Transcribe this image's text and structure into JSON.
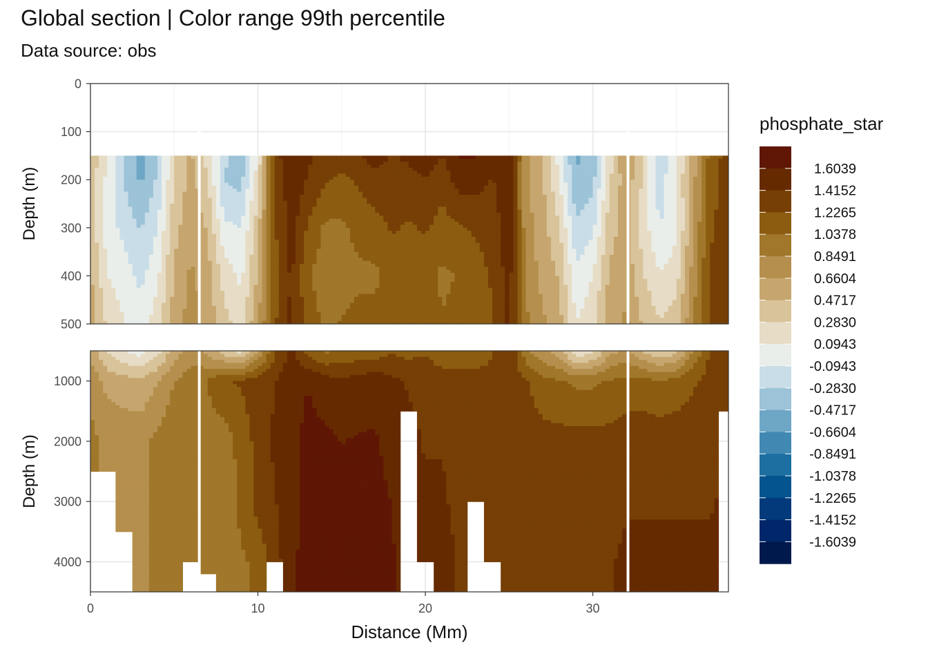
{
  "title": "Global section | Color range 99th percentile",
  "subtitle": "Data source:  obs",
  "colors": {
    "panel_border": "#333333",
    "grid_major": "#ebebeb",
    "grid_minor": "#f3f3f3",
    "missing": "#ffffff",
    "palette": [
      "#00194c",
      "#01266a",
      "#023a7b",
      "#04548f",
      "#1d6fa1",
      "#4189b3",
      "#6ea6c6",
      "#9cc3d7",
      "#c8dde8",
      "#eaeeea",
      "#e7dcc5",
      "#d8c39a",
      "#c6a66e",
      "#b58f4d",
      "#a0772b",
      "#8c5c10",
      "#763f05",
      "#662a01",
      "#5f1604"
    ]
  },
  "chart_data": {
    "type": "heatmap",
    "variable": "phosphate_star",
    "xlabel": "Distance (Mm)",
    "ylabel": "Depth (m)",
    "x_range": [
      0,
      38.1
    ],
    "x_ticks": [
      0,
      10,
      20,
      30
    ],
    "grid": true,
    "legend_position": "right",
    "legend_title": "phosphate_star",
    "legend_breaks": [
      "1.6039",
      "1.4152",
      "1.2265",
      "1.0378",
      "0.8491",
      "0.6604",
      "0.4717",
      "0.2830",
      "0.0943",
      "-0.0943",
      "-0.2830",
      "-0.4717",
      "-0.6604",
      "-0.8491",
      "-1.0378",
      "-1.2265",
      "-1.4152",
      "-1.6039"
    ],
    "panels": [
      {
        "name": "upper",
        "depth_range": [
          0,
          500
        ],
        "depth_ticks": [
          0,
          100,
          200,
          300,
          400,
          500
        ],
        "data_top_depth": 150
      },
      {
        "name": "lower",
        "depth_range": [
          500,
          4500
        ],
        "depth_ticks": [
          1000,
          2000,
          3000,
          4000
        ]
      }
    ],
    "profile_x": [
      0,
      1,
      2,
      3,
      4,
      5,
      6,
      7,
      8,
      9,
      10,
      11,
      12,
      13,
      14,
      15,
      16,
      17,
      18,
      19,
      20,
      21,
      22,
      23,
      24,
      25,
      26,
      27,
      28,
      29,
      30,
      31,
      32,
      33,
      34,
      35,
      36,
      37,
      38
    ],
    "profiles": {
      "depth": [
        150,
        200,
        300,
        400,
        500,
        1000,
        2000,
        3000,
        4000,
        4500
      ],
      "values": [
        [
          0.45,
          0.35,
          0.4,
          0.5,
          0.6,
          0.8,
          0.9,
          0.9,
          0.9,
          0.9
        ],
        [
          0.15,
          0.05,
          0.0,
          0.1,
          0.25,
          0.6,
          0.8,
          0.8,
          0.8,
          0.8
        ],
        [
          -0.25,
          -0.3,
          -0.15,
          0.0,
          0.1,
          0.55,
          0.8,
          0.8,
          0.8,
          0.8
        ],
        [
          -0.55,
          -0.5,
          -0.3,
          -0.15,
          0.0,
          0.5,
          0.8,
          0.8,
          0.8,
          0.8
        ],
        [
          -0.3,
          -0.25,
          -0.1,
          0.05,
          0.2,
          0.65,
          0.9,
          0.9,
          0.9,
          0.9
        ],
        [
          0.25,
          0.3,
          0.4,
          0.5,
          0.55,
          0.85,
          1.0,
          1.0,
          1.0,
          1.0
        ],
        [
          0.5,
          0.55,
          0.6,
          0.7,
          0.75,
          0.95,
          1.0,
          0.95,
          0.95,
          0.95
        ],
        [
          0.2,
          0.3,
          0.45,
          0.55,
          0.6,
          1.05,
          0.95,
          0.95,
          0.95,
          0.95
        ],
        [
          -0.25,
          -0.3,
          -0.05,
          0.2,
          0.35,
          1.2,
          0.95,
          0.9,
          0.95,
          0.95
        ],
        [
          -0.35,
          -0.35,
          -0.1,
          0.05,
          0.2,
          1.25,
          1.1,
          1.1,
          1.0,
          1.0
        ],
        [
          0.1,
          0.2,
          0.4,
          0.5,
          0.65,
          1.35,
          1.3,
          1.3,
          1.1,
          1.1
        ],
        [
          1.3,
          1.25,
          1.2,
          1.15,
          1.2,
          1.4,
          1.45,
          1.4,
          1.3,
          1.3
        ],
        [
          1.62,
          1.55,
          1.5,
          1.45,
          1.45,
          1.55,
          1.55,
          1.55,
          1.6,
          1.6
        ],
        [
          1.45,
          1.4,
          1.2,
          1.05,
          1.15,
          1.6,
          1.65,
          1.65,
          1.62,
          1.62
        ],
        [
          1.3,
          1.25,
          1.0,
          0.95,
          1.0,
          1.5,
          1.65,
          1.65,
          1.62,
          1.62
        ],
        [
          1.3,
          1.2,
          1.0,
          0.95,
          1.05,
          1.45,
          1.6,
          1.65,
          1.62,
          1.62
        ],
        [
          1.4,
          1.25,
          1.1,
          1.0,
          1.1,
          1.5,
          1.62,
          1.65,
          1.62,
          1.62
        ],
        [
          1.5,
          1.35,
          1.15,
          1.0,
          1.1,
          1.55,
          1.62,
          1.65,
          1.62,
          1.62
        ],
        [
          1.4,
          1.35,
          1.25,
          1.1,
          1.2,
          1.45,
          1.55,
          1.6,
          1.62,
          1.62
        ],
        [
          1.45,
          1.35,
          1.2,
          1.05,
          1.15,
          1.4,
          1.45,
          1.5,
          1.55,
          1.55
        ],
        [
          1.6,
          1.4,
          1.25,
          1.1,
          1.2,
          1.4,
          1.4,
          1.45,
          1.5,
          1.5
        ],
        [
          1.4,
          1.3,
          1.15,
          1.0,
          1.05,
          1.35,
          1.4,
          1.45,
          1.5,
          1.5
        ],
        [
          1.62,
          1.5,
          1.2,
          1.05,
          1.1,
          1.3,
          1.35,
          1.35,
          1.4,
          1.4
        ],
        [
          1.62,
          1.5,
          1.25,
          1.15,
          1.1,
          1.3,
          1.35,
          1.35,
          1.4,
          1.4
        ],
        [
          1.45,
          1.4,
          1.3,
          1.25,
          1.2,
          1.3,
          1.4,
          1.4,
          1.4,
          1.4
        ],
        [
          1.62,
          1.55,
          1.55,
          1.5,
          1.45,
          1.35,
          1.3,
          1.35,
          1.4,
          1.4
        ],
        [
          0.7,
          0.7,
          0.75,
          0.8,
          0.9,
          1.25,
          1.35,
          1.3,
          1.35,
          1.35
        ],
        [
          0.45,
          0.5,
          0.55,
          0.6,
          0.7,
          1.1,
          1.3,
          1.3,
          1.35,
          1.35
        ],
        [
          0.0,
          0.1,
          0.3,
          0.45,
          0.55,
          1.05,
          1.3,
          1.35,
          1.4,
          1.4
        ],
        [
          -0.5,
          -0.45,
          -0.25,
          -0.05,
          0.1,
          1.0,
          1.3,
          1.35,
          1.4,
          1.4
        ],
        [
          -0.4,
          -0.35,
          -0.15,
          0.1,
          0.2,
          1.0,
          1.3,
          1.35,
          1.4,
          1.4
        ],
        [
          0.2,
          0.25,
          0.4,
          0.5,
          0.6,
          1.05,
          1.3,
          1.35,
          1.4,
          1.4
        ],
        [
          0.65,
          0.6,
          0.55,
          0.6,
          0.7,
          1.1,
          1.35,
          1.4,
          1.45,
          1.45
        ],
        [
          0.3,
          0.25,
          0.2,
          0.3,
          0.45,
          1.1,
          1.35,
          1.4,
          1.45,
          1.45
        ],
        [
          -0.25,
          -0.2,
          -0.1,
          0.1,
          0.3,
          1.05,
          1.35,
          1.4,
          1.45,
          1.45
        ],
        [
          0.1,
          0.1,
          0.05,
          0.2,
          0.4,
          1.1,
          1.35,
          1.4,
          1.45,
          1.45
        ],
        [
          0.55,
          0.6,
          0.65,
          0.75,
          0.85,
          1.2,
          1.35,
          1.4,
          1.45,
          1.45
        ],
        [
          1.1,
          1.15,
          1.2,
          1.25,
          1.25,
          1.3,
          1.35,
          1.4,
          1.45,
          1.45
        ],
        [
          1.3,
          1.3,
          1.3,
          1.3,
          1.3,
          1.35,
          1.4,
          1.45,
          1.45,
          1.45
        ]
      ]
    },
    "bottom_depth": [
      2500,
      2500,
      3500,
      4500,
      4500,
      4500,
      4000,
      4200,
      4500,
      4500,
      4500,
      4000,
      4500,
      4500,
      4500,
      4500,
      4500,
      4500,
      4500,
      1500,
      4000,
      4500,
      4500,
      3000,
      4000,
      4500,
      4500,
      4500,
      4500,
      4500,
      4500,
      4500,
      4500,
      4500,
      4500,
      4500,
      4500,
      4500,
      1500
    ],
    "gap_lines_x": [
      6.5,
      32.1
    ]
  }
}
